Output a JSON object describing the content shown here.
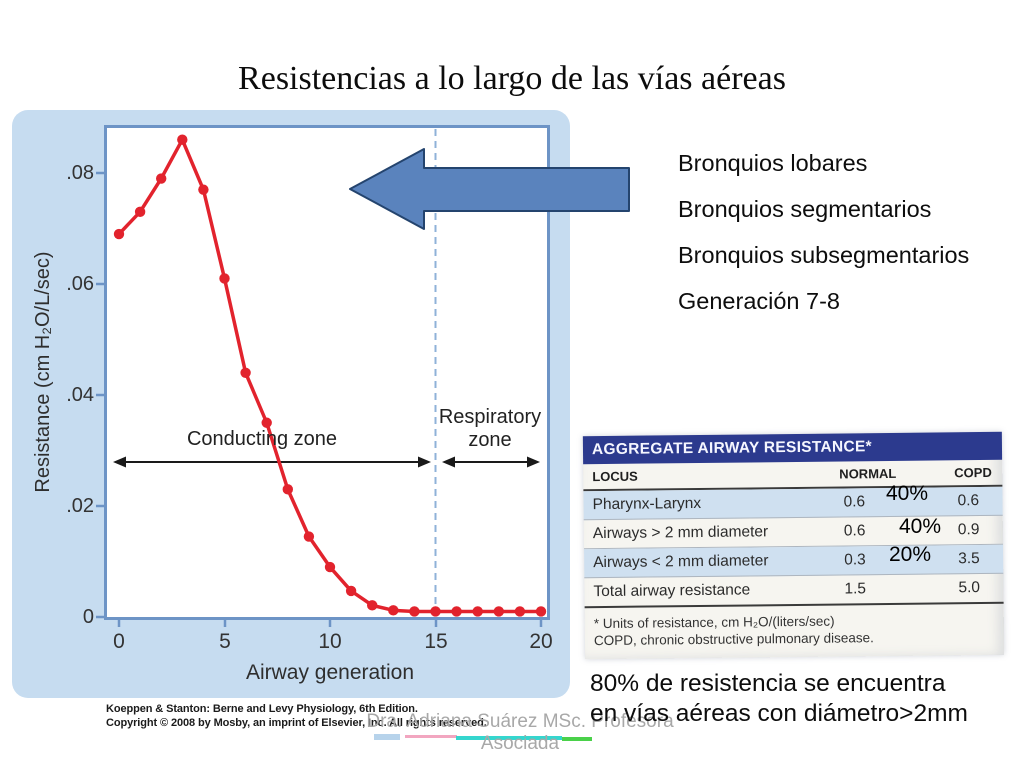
{
  "slide": {
    "title": "Resistencias a lo largo de las vías aéreas"
  },
  "chart_data": {
    "type": "line",
    "title": "",
    "xlabel": "Airway generation",
    "ylabel": "Resistance (cm H₂O/L/sec)",
    "x": [
      0,
      1,
      2,
      3,
      4,
      5,
      6,
      7,
      8,
      9,
      10,
      11,
      12,
      13,
      14,
      15,
      16,
      17,
      18,
      19,
      20
    ],
    "values": [
      0.069,
      0.073,
      0.079,
      0.086,
      0.077,
      0.061,
      0.044,
      0.035,
      0.023,
      0.0145,
      0.009,
      0.0047,
      0.0021,
      0.0012,
      0.001,
      0.001,
      0.001,
      0.001,
      0.001,
      0.001,
      0.001
    ],
    "x_ticks": [
      "0",
      "5",
      "10",
      "15",
      "20"
    ],
    "y_ticks": [
      ".08",
      ".06",
      ".04",
      ".02",
      "0"
    ],
    "xlim": [
      0,
      20
    ],
    "ylim": [
      0,
      0.088
    ],
    "grid": "off",
    "line_color": "#e2232d",
    "zone_boundary_x": 15,
    "zones": {
      "conducting": "Conducting zone",
      "respiratory_line1": "Respiratory",
      "respiratory_line2": "zone"
    },
    "citation_line1": "Koeppen & Stanton: Berne and Levy Physiology, 6th Edition.",
    "citation_line2": "Copyright © 2008 by Mosby, an imprint of Elsevier, Inc.  All rights reserved."
  },
  "annotations": {
    "bronchi_lines": [
      "Bronquios lobares",
      "Bronquios segmentarios",
      "Bronquios subsegmentarios",
      "Generación 7-8"
    ],
    "overlay_percents": [
      "40%",
      "40%",
      "20%"
    ],
    "bottom_note_line1": "80% de resistencia se encuentra",
    "bottom_note_line2": "en vías aéreas con diámetro>2mm"
  },
  "table": {
    "title": "AGGREGATE AIRWAY RESISTANCE*",
    "columns": [
      "LOCUS",
      "NORMAL",
      "COPD"
    ],
    "rows": [
      {
        "locus": "Pharynx-Larynx",
        "normal": "0.6",
        "copd": "0.6"
      },
      {
        "locus": "Airways > 2 mm diameter",
        "normal": "0.6",
        "copd": "0.9"
      },
      {
        "locus": "Airways < 2 mm diameter",
        "normal": "0.3",
        "copd": "3.5"
      },
      {
        "locus": "Total airway resistance",
        "normal": "1.5",
        "copd": "5.0"
      }
    ],
    "footnote_line1": "* Units of resistance, cm H₂O/(liters/sec)",
    "footnote_line2": "COPD, chronic obstructive pulmonary disease.",
    "header_bg": "#2c3a8e",
    "row_shade": "#cfe0f0"
  },
  "watermark": {
    "line1": "Dra. Adriana Suárez MSc. Profesora",
    "line2": "Asociada"
  },
  "colors": {
    "panel_bg": "#c6dcf0",
    "frame_stroke": "#6d94c6",
    "dashed_line": "#8fb2d8",
    "curve_red": "#e2232d",
    "arrow_fill": "#5a83bd",
    "arrow_stroke": "#24446e"
  }
}
